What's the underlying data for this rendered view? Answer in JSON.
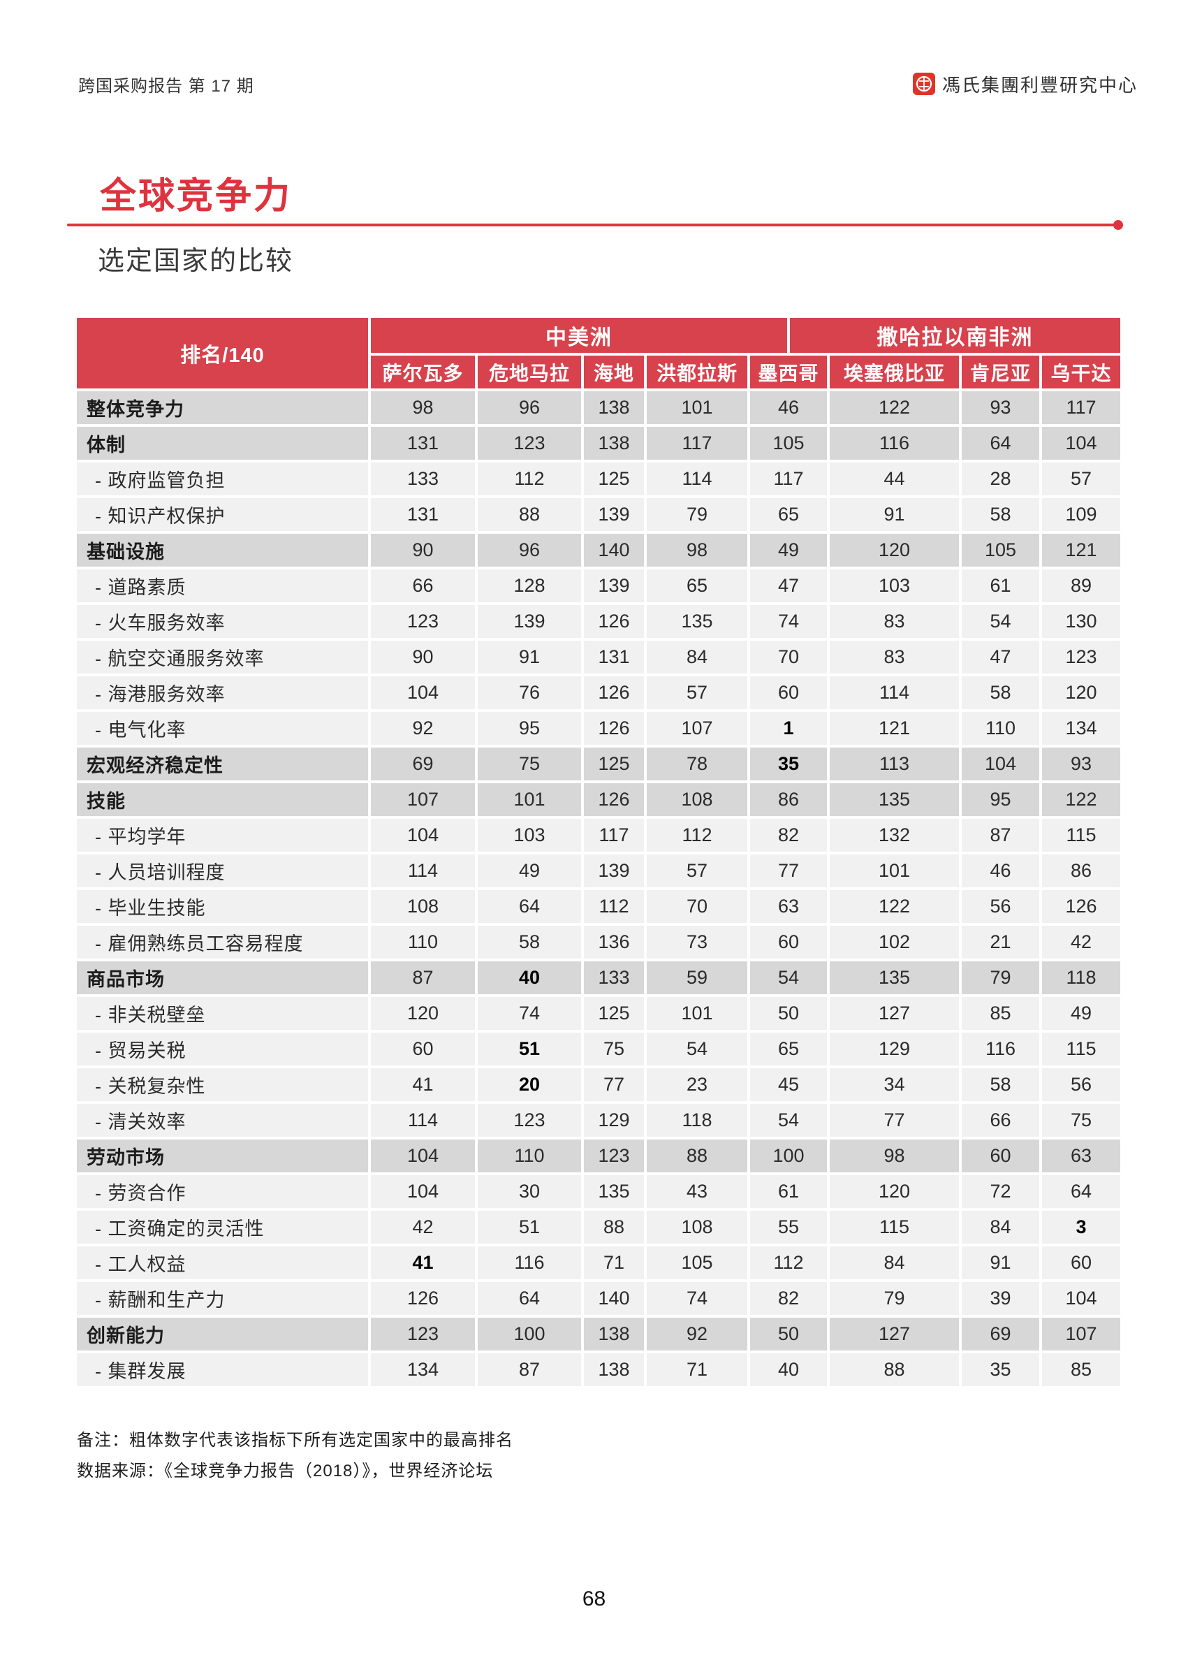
{
  "page": {
    "header_left": "跨国采购报告 第 17 期",
    "brand": "馮氏集團利豐研究中心",
    "title": "全球竞争力",
    "subtitle": "选定国家的比较",
    "page_number": "68"
  },
  "colors": {
    "accent_red": "#de333e",
    "table_header_red": "#d7424d",
    "category_row_bg": "#d7d7d7",
    "sub_row_bg": "#f1f1f2"
  },
  "table": {
    "corner_label": "排名/140",
    "groups": [
      {
        "label": "中美洲"
      },
      {
        "label": "撒哈拉以南非洲"
      }
    ],
    "columns": [
      "萨尔瓦多",
      "危地马拉",
      "海地",
      "洪都拉斯",
      "墨西哥",
      "埃塞俄比亚",
      "肯尼亚",
      "乌干达"
    ],
    "rows": [
      {
        "label": "整体竞争力",
        "type": "category",
        "values": [
          98,
          96,
          138,
          101,
          46,
          122,
          93,
          117
        ],
        "bold": []
      },
      {
        "label": "体制",
        "type": "category",
        "values": [
          131,
          123,
          138,
          117,
          105,
          116,
          64,
          104
        ],
        "bold": []
      },
      {
        "label": "- 政府监管负担",
        "type": "sub",
        "values": [
          133,
          112,
          125,
          114,
          117,
          44,
          28,
          57
        ],
        "bold": []
      },
      {
        "label": "- 知识产权保护",
        "type": "sub",
        "values": [
          131,
          88,
          139,
          79,
          65,
          91,
          58,
          109
        ],
        "bold": []
      },
      {
        "label": "基础设施",
        "type": "category",
        "values": [
          90,
          96,
          140,
          98,
          49,
          120,
          105,
          121
        ],
        "bold": []
      },
      {
        "label": "- 道路素质",
        "type": "sub",
        "values": [
          66,
          128,
          139,
          65,
          47,
          103,
          61,
          89
        ],
        "bold": []
      },
      {
        "label": "- 火车服务效率",
        "type": "sub",
        "values": [
          123,
          139,
          126,
          135,
          74,
          83,
          54,
          130
        ],
        "bold": []
      },
      {
        "label": "- 航空交通服务效率",
        "type": "sub",
        "values": [
          90,
          91,
          131,
          84,
          70,
          83,
          47,
          123
        ],
        "bold": []
      },
      {
        "label": "- 海港服务效率",
        "type": "sub",
        "values": [
          104,
          76,
          126,
          57,
          60,
          114,
          58,
          120
        ],
        "bold": []
      },
      {
        "label": "- 电气化率",
        "type": "sub",
        "values": [
          92,
          95,
          126,
          107,
          1,
          121,
          110,
          134
        ],
        "bold": [
          4
        ]
      },
      {
        "label": "宏观经济稳定性",
        "type": "category",
        "values": [
          69,
          75,
          125,
          78,
          35,
          113,
          104,
          93
        ],
        "bold": [
          4
        ]
      },
      {
        "label": "技能",
        "type": "category",
        "values": [
          107,
          101,
          126,
          108,
          86,
          135,
          95,
          122
        ],
        "bold": []
      },
      {
        "label": "- 平均学年",
        "type": "sub",
        "values": [
          104,
          103,
          117,
          112,
          82,
          132,
          87,
          115
        ],
        "bold": []
      },
      {
        "label": "- 人员培训程度",
        "type": "sub",
        "values": [
          114,
          49,
          139,
          57,
          77,
          101,
          46,
          86
        ],
        "bold": []
      },
      {
        "label": "- 毕业生技能",
        "type": "sub",
        "values": [
          108,
          64,
          112,
          70,
          63,
          122,
          56,
          126
        ],
        "bold": []
      },
      {
        "label": "- 雇佣熟练员工容易程度",
        "type": "sub",
        "values": [
          110,
          58,
          136,
          73,
          60,
          102,
          21,
          42
        ],
        "bold": []
      },
      {
        "label": "商品市场",
        "type": "category",
        "values": [
          87,
          40,
          133,
          59,
          54,
          135,
          79,
          118
        ],
        "bold": [
          1
        ]
      },
      {
        "label": "- 非关税壁垒",
        "type": "sub",
        "values": [
          120,
          74,
          125,
          101,
          50,
          127,
          85,
          49
        ],
        "bold": []
      },
      {
        "label": "- 贸易关税",
        "type": "sub",
        "values": [
          60,
          51,
          75,
          54,
          65,
          129,
          116,
          115
        ],
        "bold": [
          1
        ]
      },
      {
        "label": "- 关税复杂性",
        "type": "sub",
        "values": [
          41,
          20,
          77,
          23,
          45,
          34,
          58,
          56
        ],
        "bold": [
          1
        ]
      },
      {
        "label": "- 清关效率",
        "type": "sub",
        "values": [
          114,
          123,
          129,
          118,
          54,
          77,
          66,
          75
        ],
        "bold": []
      },
      {
        "label": "劳动市场",
        "type": "category",
        "values": [
          104,
          110,
          123,
          88,
          100,
          98,
          60,
          63
        ],
        "bold": []
      },
      {
        "label": "- 劳资合作",
        "type": "sub",
        "values": [
          104,
          30,
          135,
          43,
          61,
          120,
          72,
          64
        ],
        "bold": []
      },
      {
        "label": "- 工资确定的灵活性",
        "type": "sub",
        "values": [
          42,
          51,
          88,
          108,
          55,
          115,
          84,
          3
        ],
        "bold": [
          7
        ]
      },
      {
        "label": "- 工人权益",
        "type": "sub",
        "values": [
          41,
          116,
          71,
          105,
          112,
          84,
          91,
          60
        ],
        "bold": [
          0
        ]
      },
      {
        "label": "- 薪酬和生产力",
        "type": "sub",
        "values": [
          126,
          64,
          140,
          74,
          82,
          79,
          39,
          104
        ],
        "bold": []
      },
      {
        "label": "创新能力",
        "type": "category",
        "values": [
          123,
          100,
          138,
          92,
          50,
          127,
          69,
          107
        ],
        "bold": []
      },
      {
        "label": "- 集群发展",
        "type": "sub",
        "values": [
          134,
          87,
          138,
          71,
          40,
          88,
          35,
          85
        ],
        "bold": []
      }
    ]
  },
  "notes": [
    "备注：粗体数字代表该指标下所有选定国家中的最高排名",
    "数据来源：《全球竞争力报告（2018）》，世界经济论坛"
  ]
}
